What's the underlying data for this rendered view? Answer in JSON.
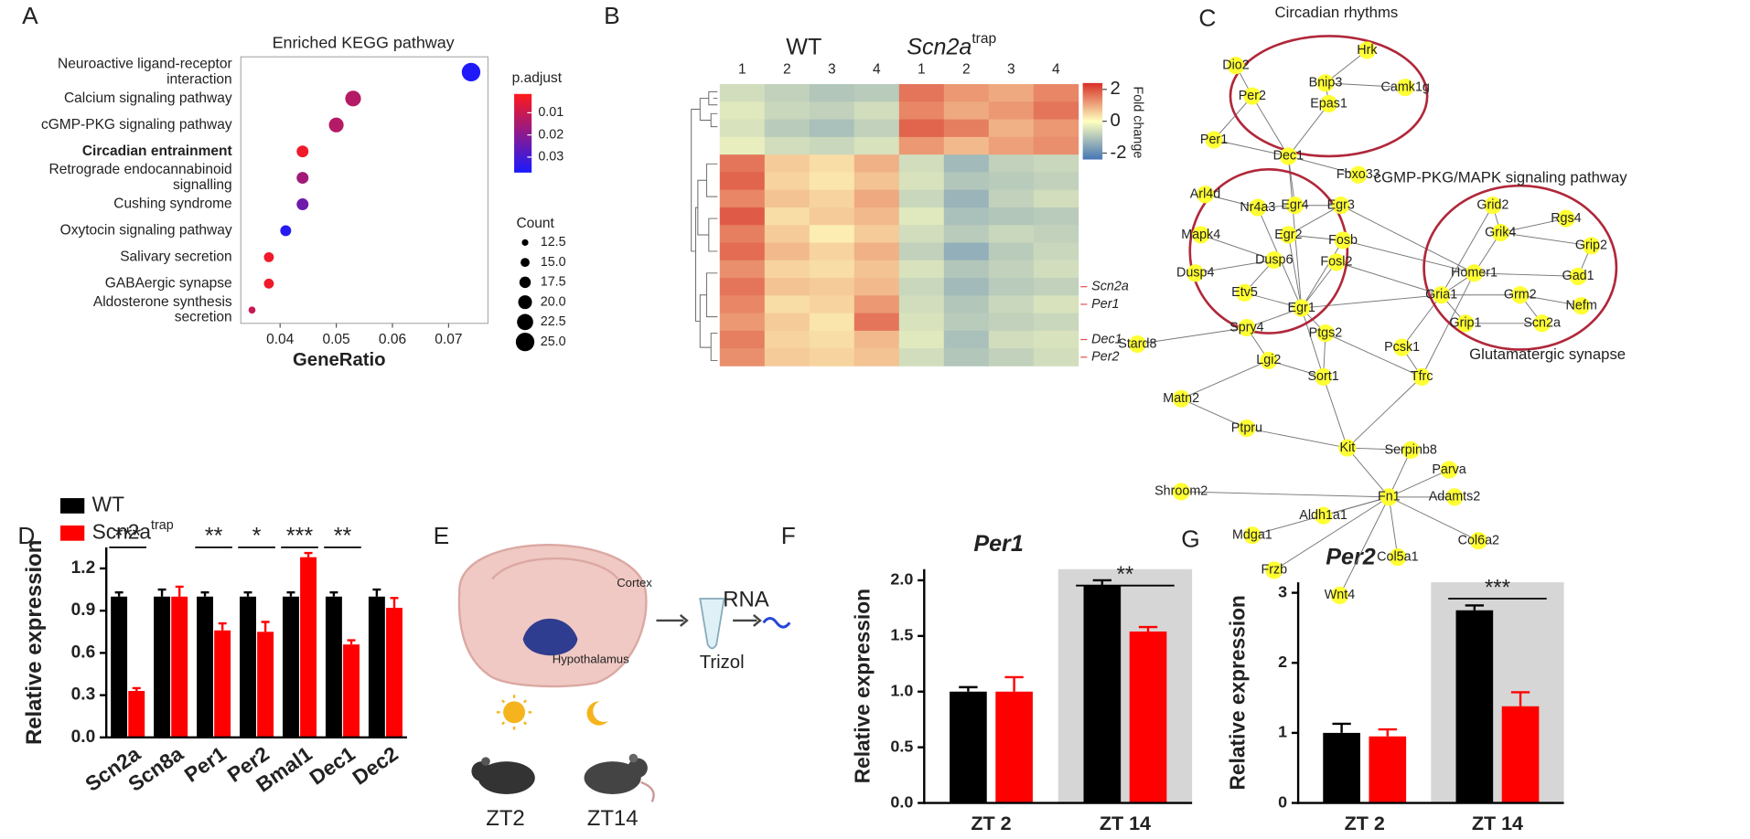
{
  "panels": [
    "A",
    "B",
    "C",
    "D",
    "E",
    "F",
    "G"
  ],
  "chart_data": [
    {
      "type": "dot",
      "title": "Enriched KEGG pathway",
      "categories": [
        "Neuroactive ligand-receptor interaction",
        "Calcium signaling pathway",
        "cGMP-PKG signaling pathway",
        "Circadian entrainment",
        "Retrograde endocannabinoid signalling",
        "Cushing syndrome",
        "Oxytocin signaling pathway",
        "Salivary secretion",
        "GABAergic synapse",
        "Aldosterone synthesis secretion"
      ],
      "x": [
        0.074,
        0.053,
        0.05,
        0.044,
        0.044,
        0.044,
        0.041,
        0.038,
        0.038,
        0.035
      ],
      "p_adjust": [
        0.036,
        0.013,
        0.013,
        0.004,
        0.016,
        0.024,
        0.035,
        0.004,
        0.004,
        0.01
      ],
      "count": [
        25,
        22,
        21,
        18,
        18,
        18,
        17,
        16,
        16,
        13
      ],
      "xlabel": "GeneRatio",
      "xlim": [
        0.033,
        0.077
      ],
      "xticks": [
        0.04,
        0.05,
        0.06,
        0.07
      ],
      "bold_category": 3,
      "color_legend_title": "p.adjust",
      "clim": [
        0.0015,
        0.037
      ],
      "cticks": [
        0.01,
        0.02,
        0.03
      ],
      "color_low": "#ff1a1a",
      "color_high": "#1a1aff",
      "size_legend_title": "Count",
      "size_ticks": [
        12.5,
        {
          "value": 15,
          "label": "15.0"
        },
        17.5,
        {
          "value": 20,
          "label": "20.0"
        },
        22.5,
        {
          "value": 25,
          "label": "25.0"
        }
      ]
    },
    {
      "type": "heatmap",
      "column_groups": [
        {
          "name": "WT"
        },
        {
          "name": "Scn2a",
          "superscript": "trap"
        }
      ],
      "columns": [
        "1",
        "2",
        "3",
        "4",
        "1",
        "2",
        "3",
        "4"
      ],
      "rows": [
        null,
        null,
        null,
        null,
        null,
        null,
        null,
        null,
        null,
        null,
        null,
        "Scn2a",
        "Per1",
        null,
        "Dec1",
        "Per2"
      ],
      "values": [
        [
          -0.6,
          -0.8,
          -1.0,
          -0.9,
          1.6,
          1.2,
          1.0,
          1.4
        ],
        [
          -0.4,
          -0.7,
          -0.8,
          -0.6,
          1.4,
          1.0,
          1.2,
          1.6
        ],
        [
          -0.5,
          -0.9,
          -1.1,
          -0.8,
          1.8,
          1.5,
          0.9,
          1.2
        ],
        [
          -0.3,
          -0.6,
          -0.7,
          -0.5,
          1.2,
          0.8,
          1.1,
          1.3
        ],
        [
          1.6,
          0.6,
          0.4,
          0.9,
          -0.6,
          -1.2,
          -0.8,
          -0.7
        ],
        [
          1.8,
          0.5,
          0.3,
          0.7,
          -0.5,
          -1.0,
          -0.9,
          -0.8
        ],
        [
          1.4,
          0.7,
          0.5,
          1.0,
          -0.7,
          -1.3,
          -0.8,
          -0.6
        ],
        [
          1.9,
          0.4,
          0.6,
          0.8,
          -0.4,
          -1.1,
          -1.0,
          -0.9
        ],
        [
          1.5,
          0.6,
          0.2,
          0.6,
          -0.6,
          -0.9,
          -0.7,
          -0.8
        ],
        [
          1.7,
          0.8,
          0.5,
          0.9,
          -0.8,
          -1.4,
          -0.9,
          -0.7
        ],
        [
          1.3,
          0.5,
          0.4,
          0.7,
          -0.5,
          -1.0,
          -0.8,
          -0.6
        ],
        [
          1.6,
          0.7,
          0.6,
          0.8,
          -0.7,
          -1.2,
          -0.9,
          -0.8
        ],
        [
          1.4,
          0.4,
          0.5,
          1.2,
          -0.6,
          -1.0,
          -0.7,
          -0.5
        ],
        [
          1.2,
          0.6,
          0.3,
          1.6,
          -0.5,
          -0.9,
          -0.8,
          -0.7
        ],
        [
          1.5,
          0.5,
          0.4,
          0.8,
          -0.4,
          -1.1,
          -0.6,
          -0.5
        ],
        [
          1.3,
          0.6,
          0.5,
          0.7,
          -0.6,
          -1.0,
          -0.8,
          -0.6
        ]
      ],
      "clim": [
        -2.4,
        2.4
      ],
      "cticks": [
        2,
        0,
        -2
      ],
      "colorbar_label": "Fold change",
      "colors": [
        "#4575b4",
        "#ffffbf",
        "#d73027"
      ]
    },
    {
      "type": "grouped_bar",
      "ylabel": "Relative expression",
      "categories": [
        "Scn2a",
        "Scn8a",
        "Per1",
        "Per2",
        "Bmal1",
        "Dec1",
        "Dec2"
      ],
      "series": [
        {
          "name": "WT",
          "color": "#000000",
          "values": [
            1,
            1,
            1,
            1,
            1,
            1,
            1
          ],
          "errors": [
            0.03,
            0.05,
            0.03,
            0.03,
            0.03,
            0.03,
            0.05
          ]
        },
        {
          "name": "Scn2a",
          "name_superscript": "trap",
          "color": "#ff0000",
          "values": [
            0.33,
            1,
            0.76,
            0.75,
            1.28,
            0.66,
            0.92
          ],
          "errors": [
            0.02,
            0.07,
            0.05,
            0.07,
            0.03,
            0.03,
            0.07
          ]
        }
      ],
      "ylim": [
        0,
        1.35
      ],
      "yticks": [
        {
          "value": 0,
          "label": "0.0"
        },
        0.3,
        0.6,
        0.9,
        1.2
      ],
      "significance": [
        "***",
        null,
        "**",
        "*",
        "***",
        "**",
        null
      ]
    },
    {
      "type": "grouped_bar",
      "title": "Per1",
      "ylabel": "Relative expression",
      "categories": [
        "ZT 2",
        "ZT 14"
      ],
      "series": [
        {
          "color": "#000000",
          "values": [
            1.0,
            1.95
          ],
          "errors": [
            0.04,
            0.05
          ]
        },
        {
          "color": "#ff0000",
          "values": [
            1.0,
            1.54
          ],
          "errors": [
            0.13,
            0.04
          ]
        }
      ],
      "ylim": [
        0,
        2.1
      ],
      "yticks": [
        {
          "value": 0,
          "label": "0.0"
        },
        0.5,
        {
          "value": 1,
          "label": "1.0"
        },
        1.5,
        {
          "value": 2,
          "label": "2.0"
        }
      ],
      "shaded_category": 1,
      "significance": [
        null,
        "**"
      ]
    },
    {
      "type": "grouped_bar",
      "title": "Per2",
      "ylabel": "Relative expression",
      "categories": [
        "ZT 2",
        "ZT 14"
      ],
      "series": [
        {
          "color": "#000000",
          "values": [
            1.0,
            2.75
          ],
          "errors": [
            0.13,
            0.07
          ]
        },
        {
          "color": "#ff0000",
          "values": [
            0.95,
            1.38
          ],
          "errors": [
            0.1,
            0.2
          ]
        }
      ],
      "ylim": [
        0,
        3.15
      ],
      "yticks": [
        0,
        1,
        2,
        3
      ],
      "shaded_category": 1,
      "significance": [
        null,
        "***"
      ]
    }
  ],
  "network": {
    "groups": [
      "Circadian rhythms",
      "cGMP-PKG/MAPK signaling pathway",
      "Glutamatergic synapse"
    ],
    "nodes": [
      "Dio2",
      "Hrk",
      "Bnip3",
      "Per2",
      "Camk1g",
      "Epas1",
      "Per1",
      "Dec1",
      "Fbxo33",
      "Arl4d",
      "Nr4a3",
      "Egr4",
      "Egr3",
      "Egr2",
      "Mapk4",
      "Fosb",
      "Dusp6",
      "Dusp4",
      "Fosl2",
      "Etv5",
      "Egr1",
      "Grid2",
      "Rgs4",
      "Grik4",
      "Grip2",
      "Homer1",
      "Gad1",
      "Gria1",
      "Grm2",
      "Nefm",
      "Grip1",
      "Scn2a",
      "Stard8",
      "Spry4",
      "Ptgs2",
      "Pcsk1",
      "Lgi2",
      "Sort1",
      "Tfrc",
      "Matn2",
      "Ptpru",
      "Kit",
      "Serpinb8",
      "Parva",
      "Shroom2",
      "Fn1",
      "Adamts2",
      "Aldh1a1",
      "Mdga1",
      "Col6a2",
      "Col5a1",
      "Frzb",
      "Wnt4"
    ]
  },
  "schematic": {
    "cortex": "Cortex",
    "hypothalamus": "Hypothalamus",
    "product": "RNA",
    "reagent": "Trizol",
    "time_points": [
      "ZT2",
      "ZT14"
    ]
  }
}
